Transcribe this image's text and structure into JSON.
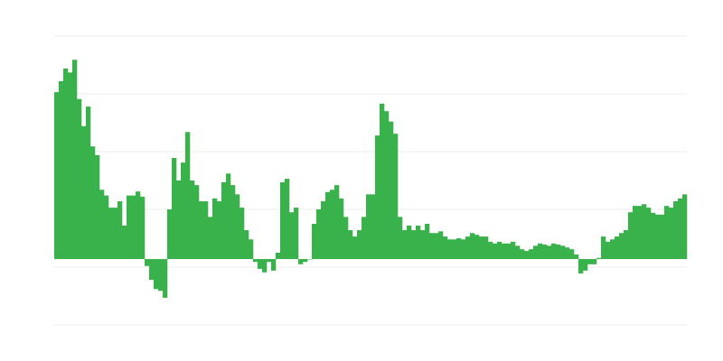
{
  "chart_data": {
    "type": "bar",
    "title": "",
    "xlabel": "",
    "ylabel": "",
    "grid": true,
    "legend": "none",
    "bar_color": "#39b24b",
    "grid_color": "#eeeeee",
    "ylim": [
      -1.14,
      3.86
    ],
    "gridlines": [
      3.86,
      2.86,
      1.86,
      0.86,
      -0.14,
      -1.14
    ],
    "values": [
      2.89,
      3.08,
      3.3,
      3.23,
      3.45,
      2.77,
      2.3,
      2.64,
      1.95,
      1.8,
      1.2,
      1.1,
      0.89,
      0.89,
      1.0,
      0.58,
      1.1,
      1.1,
      1.17,
      1.08,
      -0.12,
      -0.36,
      -0.52,
      -0.55,
      -0.67,
      0.86,
      1.75,
      1.36,
      1.67,
      2.2,
      1.36,
      1.28,
      1.0,
      1.0,
      0.73,
      1.05,
      1.0,
      1.33,
      1.48,
      1.28,
      1.12,
      0.89,
      0.5,
      0.34,
      -0.05,
      -0.17,
      -0.23,
      -0.05,
      -0.2,
      0.11,
      1.33,
      1.39,
      0.81,
      0.89,
      -0.09,
      -0.05,
      0,
      0.61,
      0.86,
      1.0,
      1.16,
      1.2,
      1.28,
      1.05,
      0.73,
      0.5,
      0.39,
      0.5,
      0.73,
      1.12,
      1.12,
      2.14,
      2.69,
      2.56,
      2.38,
      2.17,
      0.73,
      0.5,
      0.58,
      0.5,
      0.58,
      0.5,
      0.61,
      0.45,
      0.45,
      0.48,
      0.39,
      0.34,
      0.34,
      0.36,
      0.34,
      0.39,
      0.45,
      0.42,
      0.39,
      0.39,
      0.3,
      0.27,
      0.3,
      0.27,
      0.27,
      0.3,
      0.23,
      0.17,
      0.14,
      0.17,
      0.23,
      0.27,
      0.25,
      0.23,
      0.27,
      0.25,
      0.23,
      0.2,
      0.17,
      0.08,
      -0.25,
      -0.2,
      -0.09,
      -0.09,
      0.02,
      0.39,
      0.3,
      0.34,
      0.39,
      0.45,
      0.5,
      0.81,
      0.92,
      0.92,
      0.95,
      0.89,
      0.8,
      0.77,
      0.77,
      0.92,
      0.89,
      1.0,
      1.05,
      1.12
    ]
  }
}
